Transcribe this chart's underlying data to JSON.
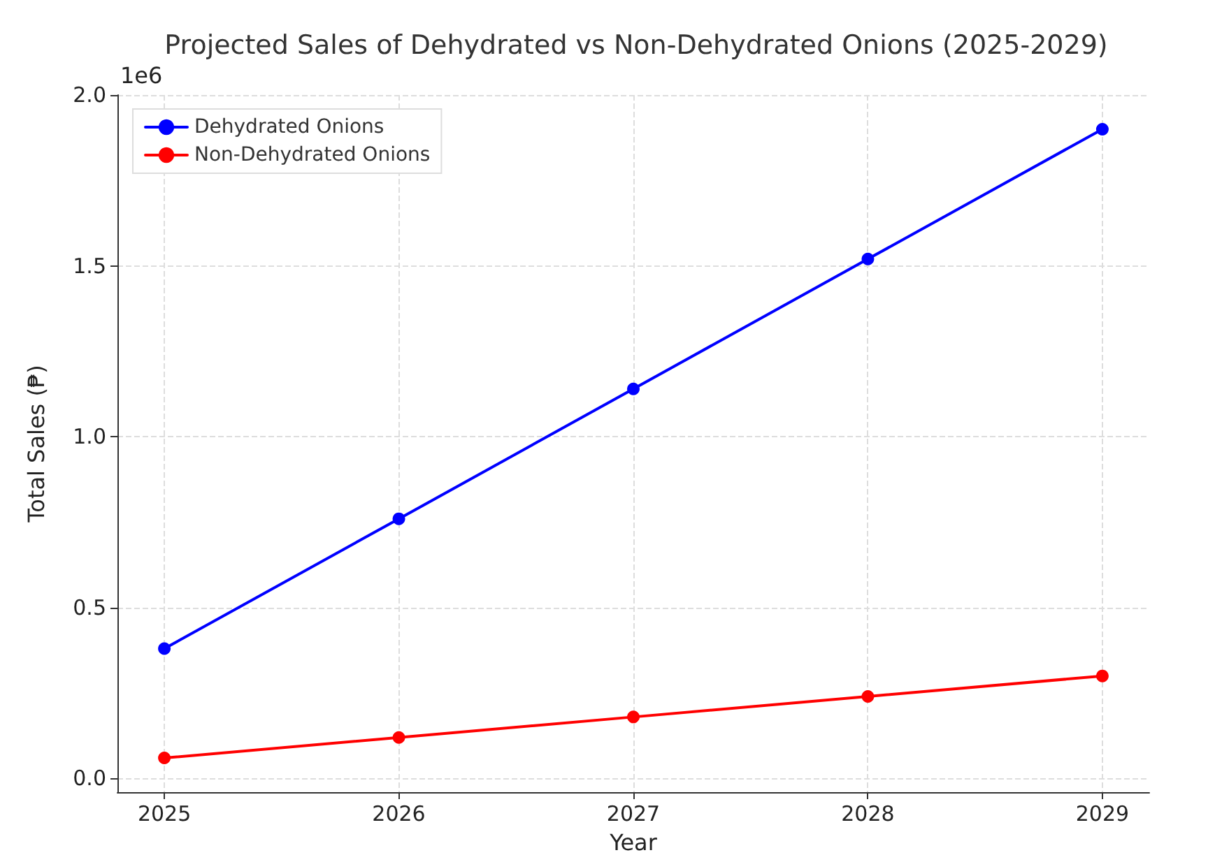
{
  "chart_data": {
    "type": "line",
    "title": "Projected Sales of Dehydrated vs Non-Dehydrated Onions (2025-2029)",
    "xlabel": "Year",
    "ylabel": "Total Sales (₱)",
    "annotations": [
      "1e6"
    ],
    "x": [
      2025,
      2026,
      2027,
      2028,
      2029
    ],
    "series": [
      {
        "name": "Dehydrated Onions",
        "color": "#0000ff",
        "values": [
          0.38,
          0.76,
          1.14,
          1.52,
          1.9
        ]
      },
      {
        "name": "Non-Dehydrated Onions",
        "color": "#ff0000",
        "values": [
          0.06,
          0.12,
          0.18,
          0.24,
          0.3
        ]
      }
    ],
    "xlim": [
      2024.8,
      2029.2
    ],
    "xticks": [
      2025,
      2026,
      2027,
      2028,
      2029
    ],
    "ylim": [
      -0.04,
      2.0
    ],
    "yticks": [
      {
        "value": 0,
        "label": "0.0"
      },
      {
        "value": 0.5,
        "label": "0.5"
      },
      {
        "value": 1,
        "label": "1.0"
      },
      {
        "value": 1.5,
        "label": "1.5"
      },
      {
        "value": 2,
        "label": "2.0"
      }
    ],
    "grid": true,
    "legend": "top left",
    "marker": "circle",
    "line_style": "solid"
  }
}
